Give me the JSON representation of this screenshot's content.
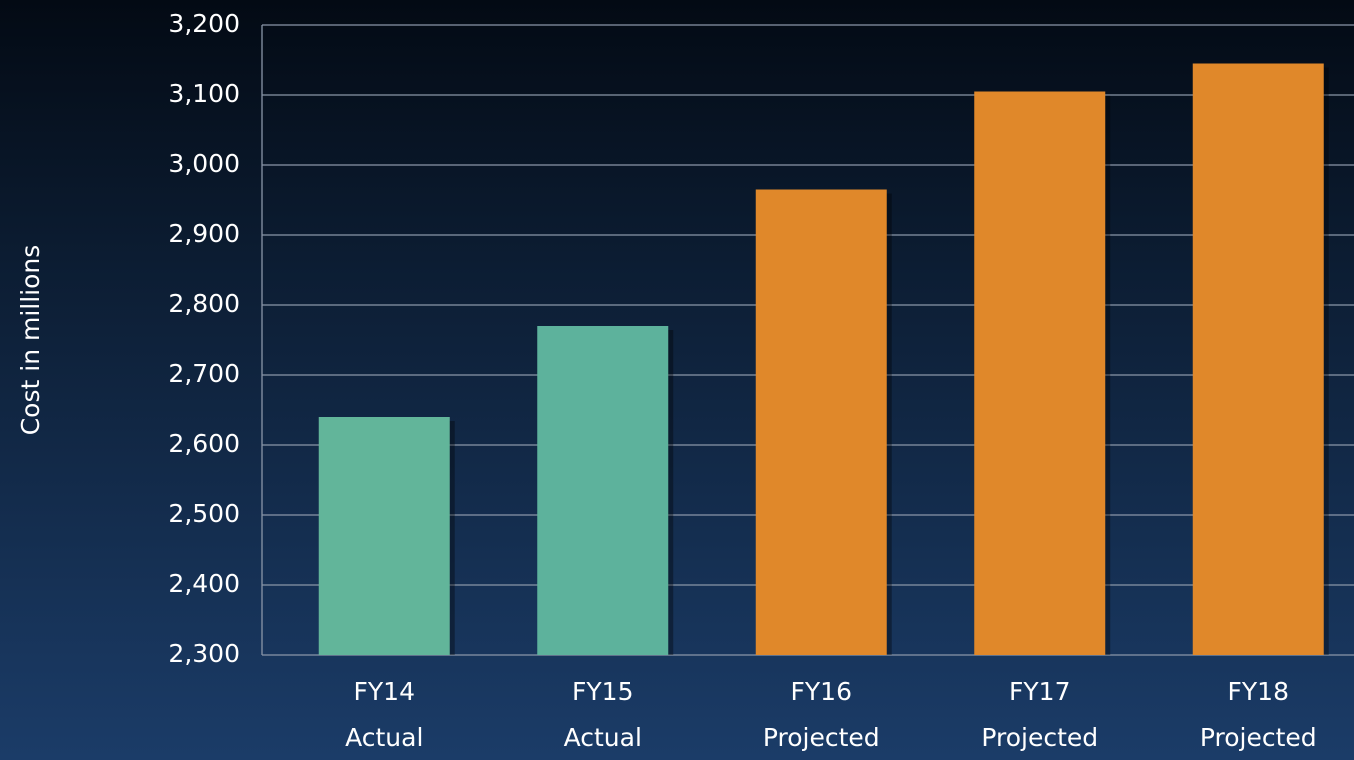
{
  "chart_data": {
    "type": "bar",
    "ylabel": "Cost in millions",
    "categories": [
      [
        "FY14",
        "Actual"
      ],
      [
        "FY15",
        "Actual"
      ],
      [
        "FY16",
        "Projected"
      ],
      [
        "FY17",
        "Projected"
      ],
      [
        "FY18",
        "Projected"
      ]
    ],
    "values": [
      2640,
      2770,
      2965,
      3105,
      3145
    ],
    "colors": [
      "#62b59a",
      "#5db29c",
      "#e0882a",
      "#e0882a",
      "#e0882a"
    ],
    "ylim": [
      2300,
      3200
    ],
    "yticks": [
      {
        "value": 2300,
        "label": "2,300"
      },
      {
        "value": 2400,
        "label": "2,400"
      },
      {
        "value": 2500,
        "label": "2,500"
      },
      {
        "value": 2600,
        "label": "2,600"
      },
      {
        "value": 2700,
        "label": "2,700"
      },
      {
        "value": 2800,
        "label": "2,800"
      },
      {
        "value": 2900,
        "label": "2,900"
      },
      {
        "value": 3000,
        "label": "3,000"
      },
      {
        "value": 3100,
        "label": "3,100"
      },
      {
        "value": 3200,
        "label": "3,200"
      }
    ],
    "grid": true
  }
}
